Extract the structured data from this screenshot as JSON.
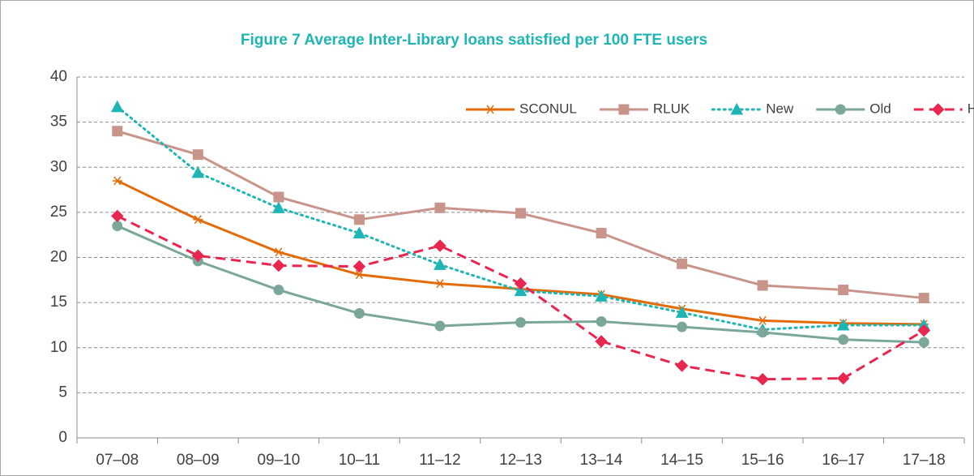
{
  "chart_data": {
    "type": "line",
    "title": "Figure 7 Average Inter-Library loans satisfied per 100 FTE users",
    "categories": [
      "07–08",
      "08–09",
      "09–10",
      "10–11",
      "11–12",
      "12–13",
      "13–14",
      "14–15",
      "15–16",
      "16–17",
      "17–18"
    ],
    "ylim": [
      0,
      40
    ],
    "yticks": [
      0,
      5,
      10,
      15,
      20,
      25,
      30,
      35,
      40
    ],
    "grid": true,
    "legend": "top-right",
    "series": [
      {
        "name": "SCONUL",
        "color": "#e36c09",
        "marker": "star",
        "dash": "solid",
        "values": [
          28.5,
          24.2,
          20.6,
          18.1,
          17.1,
          16.5,
          15.9,
          14.3,
          13.0,
          12.7,
          12.6
        ]
      },
      {
        "name": "RLUK",
        "color": "#c9948a",
        "marker": "square",
        "dash": "solid",
        "values": [
          34.0,
          31.4,
          26.7,
          24.2,
          25.5,
          24.9,
          22.7,
          19.3,
          16.9,
          16.4,
          15.5
        ]
      },
      {
        "name": "New",
        "color": "#1fb5b5",
        "marker": "triangle",
        "dash": "dot",
        "values": [
          36.7,
          29.4,
          25.5,
          22.7,
          19.2,
          16.3,
          15.7,
          13.9,
          12.0,
          12.5,
          12.5
        ]
      },
      {
        "name": "Old",
        "color": "#7aa79a",
        "marker": "circle",
        "dash": "solid",
        "values": [
          23.5,
          19.6,
          16.4,
          13.8,
          12.4,
          12.8,
          12.9,
          12.3,
          11.7,
          10.9,
          10.6
        ]
      },
      {
        "name": "HE",
        "color": "#e8264f",
        "marker": "diamond",
        "dash": "dash",
        "values": [
          24.6,
          20.2,
          19.1,
          19.0,
          21.3,
          17.1,
          10.7,
          8.0,
          6.5,
          6.6,
          11.9
        ]
      }
    ]
  }
}
